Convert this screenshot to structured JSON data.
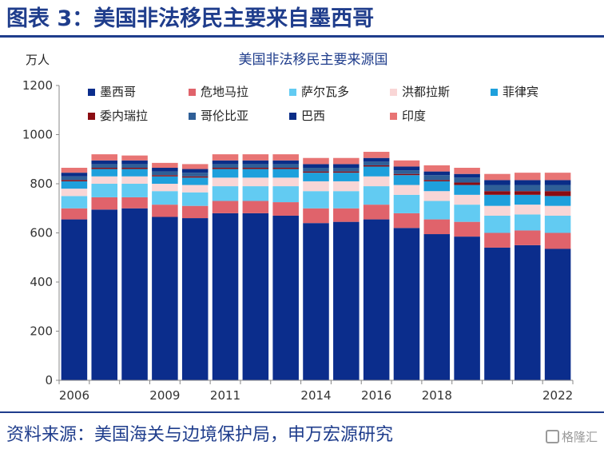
{
  "figure": {
    "title": "图表 3：美国非法移民主要来自墨西哥",
    "source": "资料来源：美国海关与边境保护局，申万宏源研究",
    "watermark": "格隆汇"
  },
  "chart_data": {
    "type": "bar",
    "stacked": true,
    "title": "美国非法移民主要来源国",
    "ylabel": "万人",
    "xlabel": "",
    "ylim": [
      0,
      1200
    ],
    "yticks": [
      0,
      200,
      400,
      600,
      800,
      1000,
      1200
    ],
    "categories": [
      "2006",
      "2007",
      "2008",
      "2009",
      "2010",
      "2011",
      "2012",
      "2013",
      "2014",
      "2015",
      "2016",
      "2017",
      "2018",
      "2019",
      "2020",
      "2021",
      "2022"
    ],
    "x_tick_labels": [
      "2006",
      "2009",
      "2011",
      "2014",
      "2016",
      "2018",
      "2022"
    ],
    "legend_position": "top",
    "series": [
      {
        "name": "墨西哥",
        "color": "#0b2d8c",
        "values": [
          655,
          695,
          700,
          665,
          660,
          680,
          680,
          670,
          640,
          645,
          655,
          620,
          595,
          585,
          540,
          550,
          535
        ]
      },
      {
        "name": "危地马拉",
        "color": "#e0636b",
        "values": [
          45,
          50,
          45,
          50,
          50,
          50,
          50,
          55,
          60,
          55,
          60,
          60,
          60,
          60,
          60,
          60,
          65
        ]
      },
      {
        "name": "萨尔瓦多",
        "color": "#62cbf2",
        "values": [
          50,
          55,
          55,
          55,
          55,
          60,
          60,
          65,
          70,
          70,
          75,
          75,
          75,
          70,
          70,
          65,
          70
        ]
      },
      {
        "name": "洪都拉斯",
        "color": "#f9d6d6",
        "values": [
          30,
          30,
          30,
          30,
          30,
          35,
          35,
          35,
          40,
          40,
          40,
          40,
          40,
          40,
          40,
          40,
          40
        ]
      },
      {
        "name": "菲律宾",
        "color": "#1ea0dc",
        "values": [
          30,
          30,
          30,
          30,
          30,
          35,
          35,
          35,
          35,
          35,
          40,
          40,
          40,
          40,
          45,
          40,
          40
        ]
      },
      {
        "name": "委内瑞拉",
        "color": "#8b0c12",
        "values": [
          5,
          5,
          5,
          5,
          5,
          5,
          5,
          5,
          5,
          5,
          5,
          5,
          5,
          10,
          15,
          15,
          20
        ]
      },
      {
        "name": "哥伦比亚",
        "color": "#2f5f97",
        "values": [
          15,
          15,
          15,
          15,
          15,
          15,
          15,
          15,
          15,
          15,
          15,
          15,
          20,
          20,
          25,
          25,
          25
        ]
      },
      {
        "name": "巴西",
        "color": "#0a2d87",
        "values": [
          15,
          15,
          15,
          15,
          15,
          15,
          15,
          15,
          15,
          15,
          15,
          15,
          15,
          15,
          20,
          20,
          20
        ]
      },
      {
        "name": "印度",
        "color": "#e87474",
        "values": [
          20,
          25,
          20,
          20,
          20,
          25,
          25,
          25,
          25,
          25,
          25,
          25,
          25,
          25,
          25,
          30,
          30
        ]
      }
    ]
  }
}
